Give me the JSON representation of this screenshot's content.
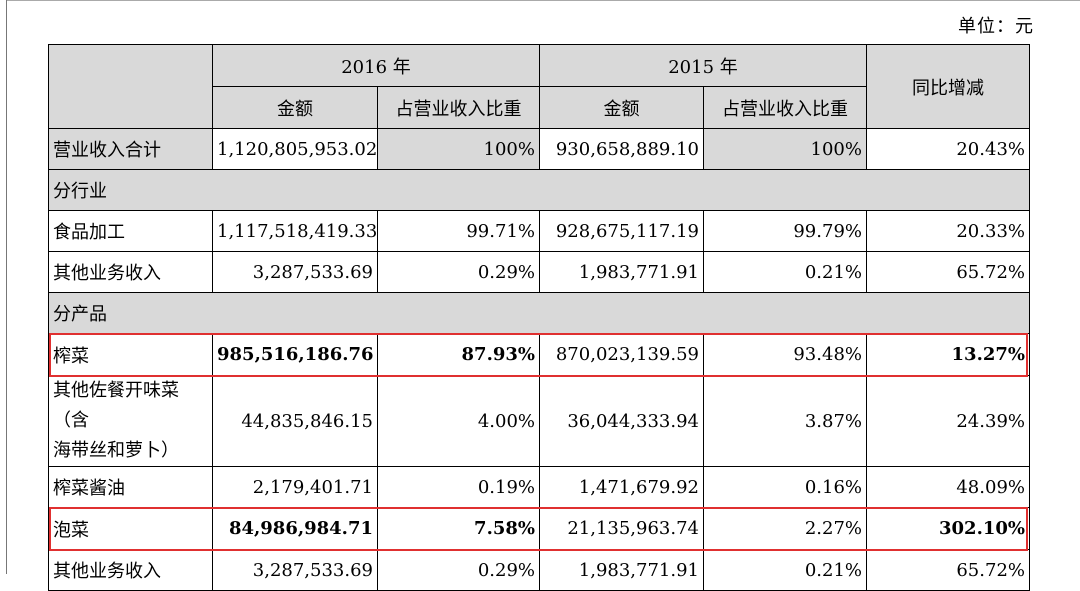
{
  "unit_label": "单位：元",
  "header": {
    "year_2016": "2016 年",
    "year_2015": "2015 年",
    "yoy": "同比增减",
    "amount": "金额",
    "ratio": "占营业收入比重"
  },
  "rows": {
    "total": {
      "label": "营业收入合计",
      "amt2016": "1,120,805,953.02",
      "pct2016": "100%",
      "amt2015": "930,658,889.10",
      "pct2015": "100%",
      "yoy": "20.43%"
    },
    "section_industry": "分行业",
    "food": {
      "label": "食品加工",
      "amt2016": "1,117,518,419.33",
      "pct2016": "99.71%",
      "amt2015": "928,675,117.19",
      "pct2015": "99.79%",
      "yoy": "20.33%"
    },
    "other1": {
      "label": "其他业务收入",
      "amt2016": "3,287,533.69",
      "pct2016": "0.29%",
      "amt2015": "1,983,771.91",
      "pct2015": "0.21%",
      "yoy": "65.72%"
    },
    "section_product": "分产品",
    "zhacai": {
      "label": "榨菜",
      "amt2016": "985,516,186.76",
      "pct2016": "87.93%",
      "amt2015": "870,023,139.59",
      "pct2015": "93.48%",
      "yoy": "13.27%"
    },
    "side": {
      "label_line1": "其他佐餐开味菜（含",
      "label_line2": "海带丝和萝卜）",
      "amt2016": "44,835,846.15",
      "pct2016": "4.00%",
      "amt2015": "36,044,333.94",
      "pct2015": "3.87%",
      "yoy": "24.39%"
    },
    "soy": {
      "label": "榨菜酱油",
      "amt2016": "2,179,401.71",
      "pct2016": "0.19%",
      "amt2015": "1,471,679.92",
      "pct2015": "0.16%",
      "yoy": "48.09%"
    },
    "paocai": {
      "label": "泡菜",
      "amt2016": "84,986,984.71",
      "pct2016": "7.58%",
      "amt2015": "21,135,963.74",
      "pct2015": "2.27%",
      "yoy": "302.10%"
    },
    "other2": {
      "label": "其他业务收入",
      "amt2016": "3,287,533.69",
      "pct2016": "0.29%",
      "amt2015": "1,983,771.91",
      "pct2015": "0.21%",
      "yoy": "65.72%"
    }
  },
  "colors": {
    "highlight_border": "#e03030",
    "header_fill": "#d9d9d9"
  }
}
